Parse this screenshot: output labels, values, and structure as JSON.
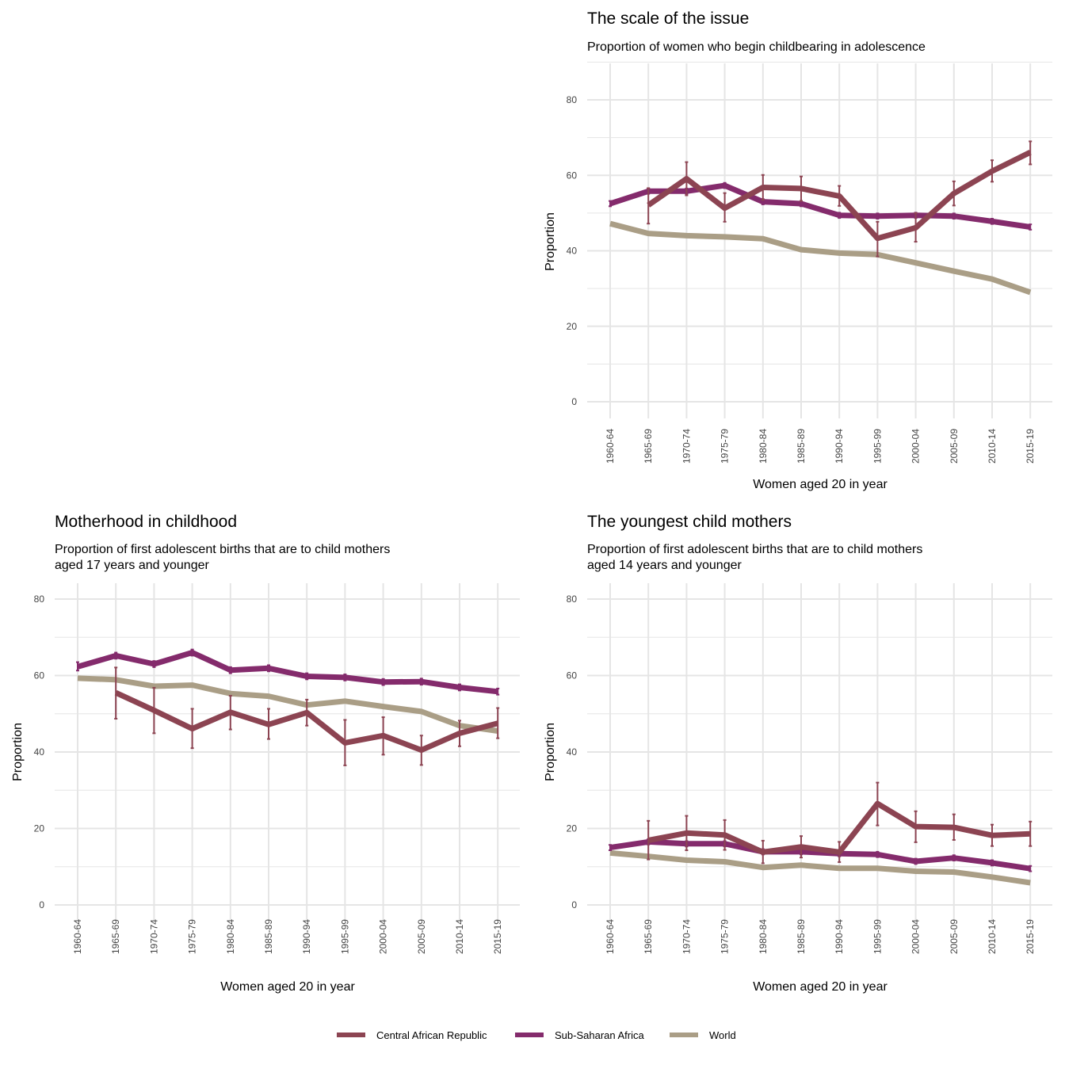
{
  "chart_data": [
    {
      "type": "line",
      "title": "The scale of the issue",
      "subtitle": "Proportion of women who begin childbearing in adolescence",
      "xlabel": "Women aged 20 in year",
      "ylabel": "Proportion",
      "ylim": [
        0,
        90
      ],
      "yticks": [
        0,
        20,
        40,
        60,
        80
      ],
      "grid": true,
      "categories": [
        "1960-64",
        "1965-69",
        "1970-74",
        "1975-79",
        "1980-84",
        "1985-89",
        "1990-94",
        "1995-99",
        "2000-04",
        "2005-09",
        "2010-14",
        "2015-19"
      ],
      "series": [
        {
          "name": "World",
          "values": [
            47.2,
            44.6,
            44.0,
            43.7,
            43.2,
            40.3,
            39.4,
            39.0,
            36.8,
            34.6,
            32.5,
            29.0
          ]
        },
        {
          "name": "Sub-Saharan Africa",
          "values": [
            52.5,
            55.8,
            55.8,
            57.3,
            53.0,
            52.5,
            49.4,
            49.2,
            49.4,
            49.2,
            47.8,
            46.3
          ],
          "error": [
            [
              51.8,
              53.2
            ],
            [
              55.1,
              56.5
            ],
            [
              55.1,
              56.5
            ],
            [
              56.6,
              58.0
            ],
            [
              52.3,
              53.7
            ],
            [
              51.8,
              53.2
            ],
            [
              48.7,
              50.1
            ],
            [
              48.5,
              49.9
            ],
            [
              48.7,
              50.1
            ],
            [
              48.5,
              49.9
            ],
            [
              47.1,
              48.5
            ],
            [
              45.6,
              47.0
            ]
          ]
        },
        {
          "name": "Central African Republic",
          "values": [
            null,
            52.1,
            59.1,
            51.3,
            56.8,
            56.5,
            54.5,
            43.3,
            46.1,
            55.2,
            61.1,
            66.1
          ],
          "error": [
            null,
            [
              47.2,
              56.6
            ],
            [
              54.7,
              63.5
            ],
            [
              47.7,
              55.3
            ],
            [
              53.5,
              60.1
            ],
            [
              53.2,
              59.7
            ],
            [
              51.9,
              57.2
            ],
            [
              38.5,
              47.7
            ],
            [
              42.4,
              50.0
            ],
            [
              52.0,
              58.4
            ],
            [
              58.3,
              64.0
            ],
            [
              62.9,
              69.0
            ]
          ]
        }
      ]
    },
    {
      "type": "line",
      "title": "Motherhood in childhood",
      "subtitle": [
        "Proportion of first adolescent births that are to child mothers",
        "aged 17 years and younger"
      ],
      "xlabel": "Women aged 20 in year",
      "ylabel": "Proportion",
      "ylim": [
        0,
        84
      ],
      "yticks": [
        0,
        20,
        40,
        60,
        80
      ],
      "grid": true,
      "categories": [
        "1960-64",
        "1965-69",
        "1970-74",
        "1975-79",
        "1980-84",
        "1985-89",
        "1990-94",
        "1995-99",
        "2000-04",
        "2005-09",
        "2010-14",
        "2015-19"
      ],
      "series": [
        {
          "name": "World",
          "values": [
            59.3,
            58.9,
            57.2,
            57.5,
            55.3,
            54.6,
            52.3,
            53.3,
            51.9,
            50.6,
            46.9,
            45.5
          ]
        },
        {
          "name": "Sub-Saharan Africa",
          "values": [
            62.3,
            65.2,
            63.0,
            66.0,
            61.4,
            61.9,
            59.8,
            59.5,
            58.3,
            58.4,
            56.9,
            55.8
          ],
          "error": [
            [
              61.3,
              63.5
            ],
            [
              64.4,
              66.0
            ],
            [
              62.2,
              63.8
            ],
            [
              65.2,
              66.8
            ],
            [
              60.6,
              62.2
            ],
            [
              61.1,
              62.7
            ],
            [
              59.0,
              60.6
            ],
            [
              58.7,
              60.3
            ],
            [
              57.5,
              59.1
            ],
            [
              57.6,
              59.2
            ],
            [
              56.1,
              57.7
            ],
            [
              55.0,
              56.6
            ]
          ]
        },
        {
          "name": "Central African Republic",
          "values": [
            null,
            55.5,
            50.9,
            46.1,
            50.4,
            47.2,
            50.3,
            42.4,
            44.3,
            40.5,
            44.9,
            47.5
          ],
          "error": [
            null,
            [
              48.7,
              62.1
            ],
            [
              44.9,
              56.8
            ],
            [
              41.0,
              51.3
            ],
            [
              45.9,
              54.7
            ],
            [
              43.4,
              51.3
            ],
            [
              46.9,
              53.7
            ],
            [
              36.5,
              48.4
            ],
            [
              39.3,
              49.1
            ],
            [
              36.6,
              44.3
            ],
            [
              41.5,
              48.2
            ],
            [
              43.6,
              51.5
            ]
          ]
        }
      ]
    },
    {
      "type": "line",
      "title": "The youngest child mothers",
      "subtitle": [
        "Proportion of first adolescent births that are to child mothers",
        "aged 14 years and younger"
      ],
      "xlabel": "Women aged 20 in year",
      "ylabel": "Proportion",
      "ylim": [
        0,
        84
      ],
      "yticks": [
        0,
        20,
        40,
        60,
        80
      ],
      "grid": true,
      "categories": [
        "1960-64",
        "1965-69",
        "1970-74",
        "1975-79",
        "1980-84",
        "1985-89",
        "1990-94",
        "1995-99",
        "2000-04",
        "2005-09",
        "2010-14",
        "2015-19"
      ],
      "series": [
        {
          "name": "World",
          "values": [
            13.6,
            12.7,
            11.7,
            11.3,
            9.8,
            10.4,
            9.6,
            9.6,
            8.8,
            8.6,
            7.3,
            5.8
          ]
        },
        {
          "name": "Sub-Saharan Africa",
          "values": [
            15.0,
            16.5,
            16.0,
            16.0,
            13.9,
            13.9,
            13.4,
            13.2,
            11.4,
            12.3,
            11.0,
            9.5
          ],
          "error": [
            [
              14.3,
              15.7
            ],
            [
              15.8,
              17.2
            ],
            [
              15.3,
              16.7
            ],
            [
              15.3,
              16.7
            ],
            [
              13.2,
              14.6
            ],
            [
              13.2,
              14.6
            ],
            [
              12.7,
              14.1
            ],
            [
              12.5,
              13.9
            ],
            [
              10.7,
              12.1
            ],
            [
              11.6,
              13.0
            ],
            [
              10.3,
              11.7
            ],
            [
              8.8,
              10.2
            ]
          ]
        },
        {
          "name": "Central African Republic",
          "values": [
            null,
            16.9,
            18.8,
            18.3,
            13.8,
            15.2,
            13.8,
            26.5,
            20.5,
            20.3,
            18.2,
            18.6
          ],
          "error": [
            null,
            [
              11.9,
              22.0
            ],
            [
              14.3,
              23.3
            ],
            [
              14.4,
              22.2
            ],
            [
              10.9,
              16.8
            ],
            [
              12.4,
              18.0
            ],
            [
              11.2,
              16.5
            ],
            [
              20.8,
              32.0
            ],
            [
              16.4,
              24.5
            ],
            [
              17.0,
              23.7
            ],
            [
              15.4,
              21.0
            ],
            [
              15.4,
              21.8
            ]
          ]
        }
      ]
    }
  ],
  "legend": {
    "placement": "bottom",
    "items": [
      {
        "label": "Central African Republic",
        "color": "#8c4452"
      },
      {
        "label": "Sub-Saharan Africa",
        "color": "#842b6c"
      },
      {
        "label": "World",
        "color": "#aa9e86"
      }
    ]
  },
  "colors": {
    "Central African Republic": "#8c4452",
    "Sub-Saharan Africa": "#842b6c",
    "World": "#aa9e86",
    "grid": "#e5e5e5"
  }
}
